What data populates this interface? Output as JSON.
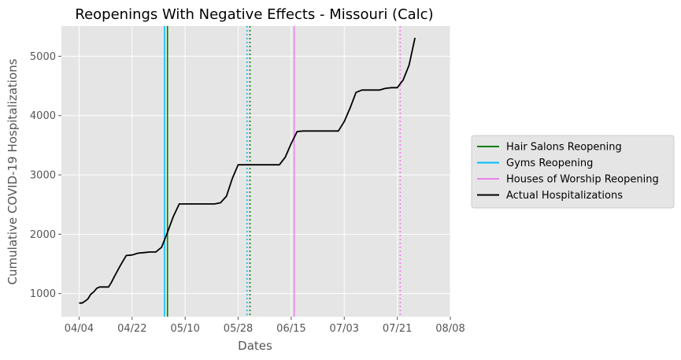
{
  "chart_data": {
    "type": "line",
    "title": "Reopenings With Negative Effects - Missouri (Calc)",
    "xlabel": "Dates",
    "ylabel": "Cumulative COVID-19 Hospitalizations",
    "x_ticks": [
      "04/04",
      "04/22",
      "05/10",
      "05/28",
      "06/15",
      "07/03",
      "07/21",
      "08/08"
    ],
    "y_ticks": [
      1000,
      2000,
      3000,
      4000,
      5000
    ],
    "xlim": [
      "2020-03-29",
      "2020-08-08"
    ],
    "ylim": [
      610,
      5510
    ],
    "grid": true,
    "background": "#e5e5e5",
    "legend_position": "right",
    "series": [
      {
        "name": "Actual Hospitalizations",
        "color": "#000000",
        "x": [
          "2020-04-04",
          "2020-04-05",
          "2020-04-06",
          "2020-04-07",
          "2020-04-08",
          "2020-04-09",
          "2020-04-10",
          "2020-04-11",
          "2020-04-12",
          "2020-04-13",
          "2020-04-14",
          "2020-04-15",
          "2020-04-16",
          "2020-04-18",
          "2020-04-20",
          "2020-04-22",
          "2020-04-24",
          "2020-04-26",
          "2020-04-28",
          "2020-04-30",
          "2020-05-02",
          "2020-05-04",
          "2020-05-06",
          "2020-05-08",
          "2020-05-10",
          "2020-05-12",
          "2020-05-14",
          "2020-05-16",
          "2020-05-18",
          "2020-05-20",
          "2020-05-22",
          "2020-05-24",
          "2020-05-26",
          "2020-05-28",
          "2020-05-30",
          "2020-06-01",
          "2020-06-03",
          "2020-06-05",
          "2020-06-07",
          "2020-06-09",
          "2020-06-11",
          "2020-06-13",
          "2020-06-15",
          "2020-06-17",
          "2020-06-19",
          "2020-06-21",
          "2020-06-23",
          "2020-06-25",
          "2020-06-27",
          "2020-06-29",
          "2020-07-01",
          "2020-07-03",
          "2020-07-05",
          "2020-07-07",
          "2020-07-09",
          "2020-07-11",
          "2020-07-13",
          "2020-07-15",
          "2020-07-17",
          "2020-07-19",
          "2020-07-21",
          "2020-07-23",
          "2020-07-25",
          "2020-07-27"
        ],
        "y": [
          840,
          840,
          870,
          910,
          990,
          1030,
          1090,
          1110,
          1110,
          1110,
          1110,
          1190,
          1290,
          1470,
          1640,
          1650,
          1680,
          1690,
          1700,
          1700,
          1780,
          2030,
          2300,
          2510,
          2510,
          2510,
          2510,
          2510,
          2510,
          2510,
          2530,
          2640,
          2940,
          3170,
          3170,
          3170,
          3170,
          3170,
          3170,
          3170,
          3170,
          3300,
          3530,
          3730,
          3740,
          3740,
          3740,
          3740,
          3740,
          3740,
          3740,
          3900,
          4130,
          4390,
          4430,
          4430,
          4430,
          4430,
          4460,
          4470,
          4470,
          4600,
          4850,
          5310
        ]
      }
    ],
    "vlines": [
      {
        "label": "Hair Salons Reopening",
        "date": "2020-05-04",
        "color": "#008000",
        "style": "solid"
      },
      {
        "label": "Hair Salons Reopening",
        "date": "2020-06-01",
        "color": "#008000",
        "style": "dotted"
      },
      {
        "label": "Gyms Reopening",
        "date": "2020-05-03",
        "color": "#00bfff",
        "style": "solid"
      },
      {
        "label": "Gyms Reopening",
        "date": "2020-05-31",
        "color": "#00bfff",
        "style": "dotted"
      },
      {
        "label": "Houses of Worship Reopening",
        "date": "2020-06-16",
        "color": "#ee82ee",
        "style": "solid"
      },
      {
        "label": "Houses of Worship Reopening",
        "date": "2020-07-22",
        "color": "#ee82ee",
        "style": "dotted"
      }
    ],
    "legend": [
      {
        "label": "Hair Salons Reopening",
        "color": "#008000"
      },
      {
        "label": "Gyms Reopening",
        "color": "#00bfff"
      },
      {
        "label": "Houses of Worship Reopening",
        "color": "#ee82ee"
      },
      {
        "label": "Actual Hospitalizations",
        "color": "#000000"
      }
    ]
  }
}
